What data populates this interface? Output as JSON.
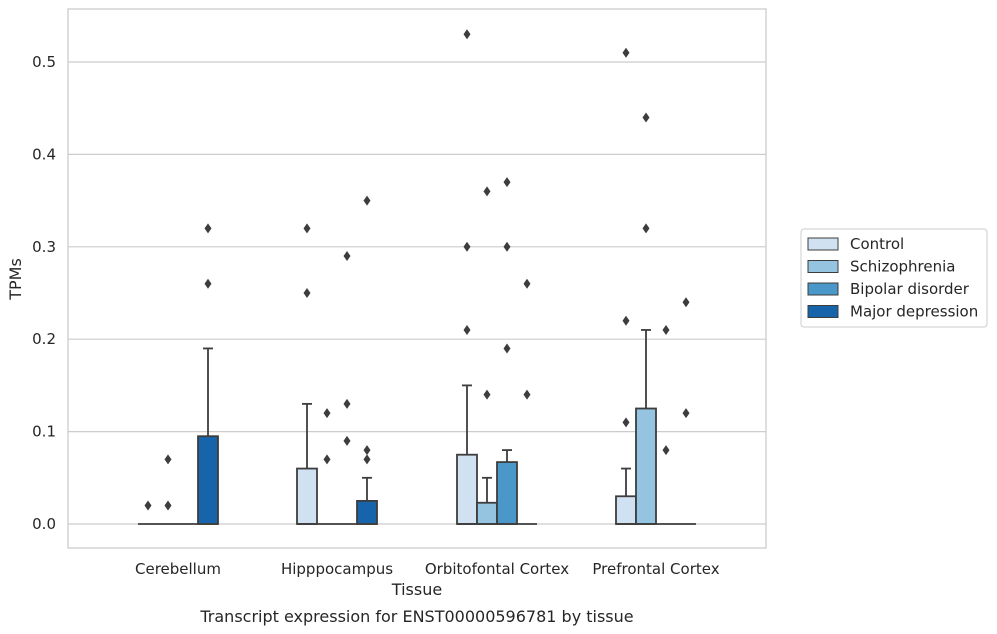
{
  "chart_data": {
    "type": "box",
    "caption": "Transcript expression for ENST00000596781 by tissue",
    "xlabel": "Tissue",
    "ylabel": "TPMs",
    "ylim": [
      -0.025,
      0.556
    ],
    "yticks": [
      0.0,
      0.1,
      0.2,
      0.3,
      0.4,
      0.5
    ],
    "ytick_labels": [
      "0.0",
      "0.1",
      "0.2",
      "0.3",
      "0.4",
      "0.5"
    ],
    "grid": "horizontal",
    "legend_position": "right",
    "categories": [
      "Cerebellum",
      "Hipppocampus",
      "Orbitofontal Cortex",
      "Prefrontal Cortex"
    ],
    "series": [
      {
        "name": "Control",
        "color": "#d0e1f2",
        "boxes": [
          {
            "q1": 0,
            "median": 0,
            "q3": 0,
            "whisker_low": 0,
            "whisker_high": 0,
            "outliers": [
              0.02
            ]
          },
          {
            "q1": 0,
            "median": 0,
            "q3": 0.06,
            "whisker_low": 0,
            "whisker_high": 0.13,
            "outliers": [
              0.25,
              0.32
            ]
          },
          {
            "q1": 0,
            "median": 0,
            "q3": 0.075,
            "whisker_low": 0,
            "whisker_high": 0.15,
            "outliers": [
              0.21,
              0.3,
              0.53
            ]
          },
          {
            "q1": 0,
            "median": 0,
            "q3": 0.03,
            "whisker_low": 0,
            "whisker_high": 0.06,
            "outliers": [
              0.11,
              0.22,
              0.51
            ]
          }
        ]
      },
      {
        "name": "Schizophrenia",
        "color": "#94c4df",
        "boxes": [
          {
            "q1": 0,
            "median": 0,
            "q3": 0,
            "whisker_low": 0,
            "whisker_high": 0,
            "outliers": [
              0.02,
              0.07
            ]
          },
          {
            "q1": 0,
            "median": 0,
            "q3": 0,
            "whisker_low": 0,
            "whisker_high": 0,
            "outliers": [
              0.07,
              0.12
            ]
          },
          {
            "q1": 0,
            "median": 0,
            "q3": 0.023,
            "whisker_low": 0,
            "whisker_high": 0.05,
            "outliers": [
              0.14,
              0.36
            ]
          },
          {
            "q1": 0,
            "median": 0,
            "q3": 0.125,
            "whisker_low": 0,
            "whisker_high": 0.21,
            "outliers": [
              0.32,
              0.44
            ]
          }
        ]
      },
      {
        "name": "Bipolar disorder",
        "color": "#4a98c9",
        "boxes": [
          {
            "q1": 0,
            "median": 0,
            "q3": 0,
            "whisker_low": 0,
            "whisker_high": 0,
            "outliers": []
          },
          {
            "q1": 0,
            "median": 0,
            "q3": 0,
            "whisker_low": 0,
            "whisker_high": 0,
            "outliers": [
              0.09,
              0.13,
              0.29
            ]
          },
          {
            "q1": 0,
            "median": 0,
            "q3": 0.067,
            "whisker_low": 0,
            "whisker_high": 0.08,
            "outliers": [
              0.19,
              0.3,
              0.37
            ]
          },
          {
            "q1": 0,
            "median": 0,
            "q3": 0,
            "whisker_low": 0,
            "whisker_high": 0,
            "outliers": [
              0.08,
              0.21
            ]
          }
        ]
      },
      {
        "name": "Major depression",
        "color": "#1764ab",
        "boxes": [
          {
            "q1": 0,
            "median": 0,
            "q3": 0.095,
            "whisker_low": 0,
            "whisker_high": 0.19,
            "outliers": [
              0.26,
              0.32
            ]
          },
          {
            "q1": 0,
            "median": 0,
            "q3": 0.025,
            "whisker_low": 0,
            "whisker_high": 0.05,
            "outliers": [
              0.07,
              0.08,
              0.35
            ]
          },
          {
            "q1": 0,
            "median": 0,
            "q3": 0,
            "whisker_low": 0,
            "whisker_high": 0,
            "outliers": [
              0.14,
              0.26
            ]
          },
          {
            "q1": 0,
            "median": 0,
            "q3": 0,
            "whisker_low": 0,
            "whisker_high": 0,
            "outliers": [
              0.12,
              0.24
            ]
          }
        ]
      }
    ]
  }
}
